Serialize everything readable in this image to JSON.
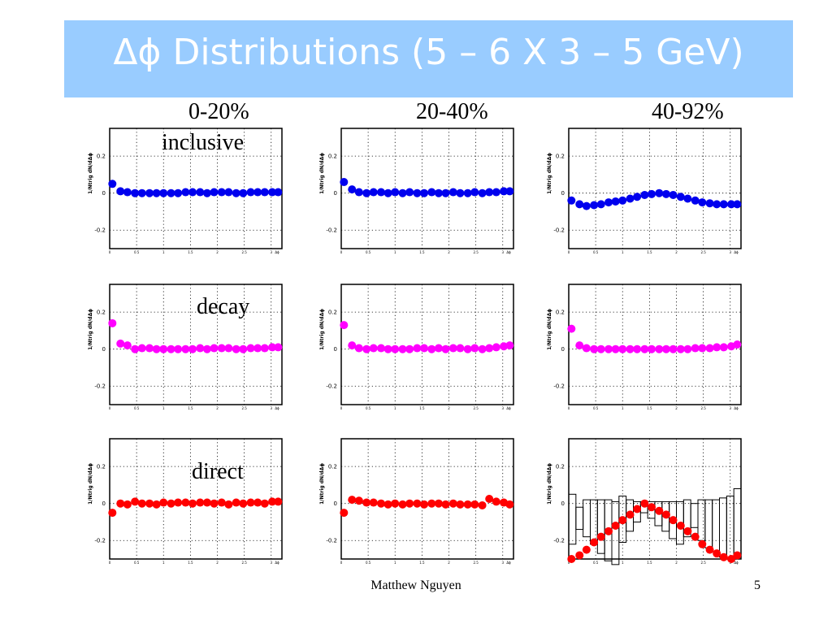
{
  "slide": {
    "title": "Δϕ Distributions (5 – 6 X 3 – 5 GeV)",
    "columns": [
      "0-20%",
      "20-40%",
      "40-92%"
    ],
    "rows": [
      "inclusive",
      "decay",
      "direct"
    ],
    "footer": "Matthew Nguyen",
    "page_number": "5"
  },
  "colors": {
    "title_bar": "#99ccff",
    "title_text": "#ffffff",
    "inclusive": "#0000ee",
    "decay": "#ff00ff",
    "direct": "#ff0000"
  },
  "chart_data": [
    {
      "type": "scatter",
      "row": "inclusive",
      "column": "0-20%",
      "ylabel": "1/Ntrig dN/dΔϕ",
      "xlabel": "Δϕ",
      "xlim": [
        0,
        3.2
      ],
      "ylim": [
        -0.3,
        0.35
      ],
      "yticks": [
        "-0.2",
        "0",
        "0.2"
      ],
      "xticks": [
        "0",
        "0.5",
        "1",
        "1.5",
        "2",
        "2.5",
        "3"
      ],
      "color": "#0000ee",
      "x": [
        0.05,
        0.2,
        0.33,
        0.47,
        0.6,
        0.74,
        0.87,
        1.0,
        1.14,
        1.27,
        1.41,
        1.54,
        1.68,
        1.81,
        1.94,
        2.08,
        2.21,
        2.35,
        2.48,
        2.62,
        2.75,
        2.88,
        3.02,
        3.13
      ],
      "y": [
        0.05,
        0.01,
        0.005,
        0.0,
        0.0,
        0.0,
        0.0,
        0.0,
        0.0,
        0.0,
        0.005,
        0.005,
        0.005,
        0.0,
        0.005,
        0.005,
        0.005,
        0.0,
        0.0,
        0.005,
        0.005,
        0.005,
        0.005,
        0.005
      ]
    },
    {
      "type": "scatter",
      "row": "inclusive",
      "column": "20-40%",
      "ylabel": "1/Ntrig dN/dΔϕ",
      "xlabel": "Δϕ",
      "xlim": [
        0,
        3.2
      ],
      "ylim": [
        -0.3,
        0.35
      ],
      "yticks": [
        "-0.2",
        "0",
        "0.2"
      ],
      "xticks": [
        "0",
        "0.5",
        "1",
        "1.5",
        "2",
        "2.5",
        "3"
      ],
      "color": "#0000ee",
      "x": [
        0.05,
        0.2,
        0.33,
        0.47,
        0.6,
        0.74,
        0.87,
        1.0,
        1.14,
        1.27,
        1.41,
        1.54,
        1.68,
        1.81,
        1.94,
        2.08,
        2.21,
        2.35,
        2.48,
        2.62,
        2.75,
        2.88,
        3.02,
        3.13
      ],
      "y": [
        0.06,
        0.02,
        0.005,
        0.0,
        0.005,
        0.005,
        0.0,
        0.005,
        0.0,
        0.005,
        0.0,
        0.0,
        0.005,
        0.0,
        0.0,
        0.005,
        0.0,
        0.0,
        0.005,
        0.0,
        0.005,
        0.005,
        0.01,
        0.01
      ]
    },
    {
      "type": "scatter",
      "row": "inclusive",
      "column": "40-92%",
      "ylabel": "1/Ntrig dN/dΔϕ",
      "xlabel": "Δϕ",
      "xlim": [
        0,
        3.2
      ],
      "ylim": [
        -0.3,
        0.35
      ],
      "yticks": [
        "-0.2",
        "0",
        "0.2"
      ],
      "xticks": [
        "0",
        "0.5",
        "1",
        "1.5",
        "2",
        "2.5",
        "3"
      ],
      "color": "#0000ee",
      "x": [
        0.05,
        0.2,
        0.33,
        0.47,
        0.6,
        0.74,
        0.87,
        1.0,
        1.14,
        1.27,
        1.41,
        1.54,
        1.68,
        1.81,
        1.94,
        2.08,
        2.21,
        2.35,
        2.48,
        2.62,
        2.75,
        2.88,
        3.02,
        3.13
      ],
      "y": [
        -0.04,
        -0.06,
        -0.07,
        -0.065,
        -0.06,
        -0.05,
        -0.045,
        -0.04,
        -0.03,
        -0.02,
        -0.01,
        -0.005,
        0.0,
        -0.005,
        -0.01,
        -0.02,
        -0.03,
        -0.04,
        -0.05,
        -0.055,
        -0.06,
        -0.06,
        -0.06,
        -0.06
      ]
    },
    {
      "type": "scatter",
      "row": "decay",
      "column": "0-20%",
      "ylabel": "1/Ntrig dN/dΔϕ",
      "xlabel": "Δϕ",
      "xlim": [
        0,
        3.2
      ],
      "ylim": [
        -0.3,
        0.35
      ],
      "yticks": [
        "-0.2",
        "0",
        "0.2"
      ],
      "xticks": [
        "0",
        "0.5",
        "1",
        "1.5",
        "2",
        "2.5",
        "3"
      ],
      "color": "#ff00ff",
      "x": [
        0.05,
        0.2,
        0.33,
        0.47,
        0.6,
        0.74,
        0.87,
        1.0,
        1.14,
        1.27,
        1.41,
        1.54,
        1.68,
        1.81,
        1.94,
        2.08,
        2.21,
        2.35,
        2.48,
        2.62,
        2.75,
        2.88,
        3.02,
        3.13
      ],
      "y": [
        0.14,
        0.03,
        0.02,
        0.0,
        0.005,
        0.005,
        0.0,
        0.0,
        0.0,
        0.0,
        0.0,
        0.0,
        0.005,
        0.0,
        0.005,
        0.005,
        0.005,
        0.0,
        0.0,
        0.005,
        0.005,
        0.005,
        0.01,
        0.01
      ]
    },
    {
      "type": "scatter",
      "row": "decay",
      "column": "20-40%",
      "ylabel": "1/Ntrig dN/dΔϕ",
      "xlabel": "Δϕ",
      "xlim": [
        0,
        3.2
      ],
      "ylim": [
        -0.3,
        0.35
      ],
      "yticks": [
        "-0.2",
        "0",
        "0.2"
      ],
      "xticks": [
        "0",
        "0.5",
        "1",
        "1.5",
        "2",
        "2.5",
        "3"
      ],
      "color": "#ff00ff",
      "x": [
        0.05,
        0.2,
        0.33,
        0.47,
        0.6,
        0.74,
        0.87,
        1.0,
        1.14,
        1.27,
        1.41,
        1.54,
        1.68,
        1.81,
        1.94,
        2.08,
        2.21,
        2.35,
        2.48,
        2.62,
        2.75,
        2.88,
        3.02,
        3.13
      ],
      "y": [
        0.13,
        0.02,
        0.005,
        0.0,
        0.005,
        0.005,
        0.0,
        0.0,
        0.0,
        0.0,
        0.005,
        0.005,
        0.0,
        0.005,
        0.0,
        0.005,
        0.005,
        0.0,
        0.005,
        0.0,
        0.005,
        0.01,
        0.015,
        0.02
      ]
    },
    {
      "type": "scatter",
      "row": "decay",
      "column": "40-92%",
      "ylabel": "1/Ntrig dN/dΔϕ",
      "xlabel": "Δϕ",
      "xlim": [
        0,
        3.2
      ],
      "ylim": [
        -0.3,
        0.35
      ],
      "yticks": [
        "-0.2",
        "0",
        "0.2"
      ],
      "xticks": [
        "0",
        "0.5",
        "1",
        "1.5",
        "2",
        "2.5",
        "3"
      ],
      "color": "#ff00ff",
      "x": [
        0.05,
        0.2,
        0.33,
        0.47,
        0.6,
        0.74,
        0.87,
        1.0,
        1.14,
        1.27,
        1.41,
        1.54,
        1.68,
        1.81,
        1.94,
        2.08,
        2.21,
        2.35,
        2.48,
        2.62,
        2.75,
        2.88,
        3.02,
        3.13
      ],
      "y": [
        0.11,
        0.02,
        0.005,
        0.0,
        0.0,
        0.0,
        0.0,
        0.0,
        0.0,
        0.0,
        0.0,
        0.0,
        0.0,
        0.0,
        0.0,
        0.0,
        0.0,
        0.005,
        0.005,
        0.005,
        0.01,
        0.01,
        0.015,
        0.025
      ]
    },
    {
      "type": "scatter",
      "row": "direct",
      "column": "0-20%",
      "ylabel": "1/Ntrig dN/dΔϕ",
      "xlabel": "Δϕ",
      "xlim": [
        0,
        3.2
      ],
      "ylim": [
        -0.3,
        0.35
      ],
      "yticks": [
        "-0.2",
        "0",
        "0.2"
      ],
      "xticks": [
        "0",
        "0.5",
        "1",
        "1.5",
        "2",
        "2.5",
        "3"
      ],
      "color": "#ff0000",
      "x": [
        0.05,
        0.2,
        0.33,
        0.47,
        0.6,
        0.74,
        0.87,
        1.0,
        1.14,
        1.27,
        1.41,
        1.54,
        1.68,
        1.81,
        1.94,
        2.08,
        2.21,
        2.35,
        2.48,
        2.62,
        2.75,
        2.88,
        3.02,
        3.13
      ],
      "y": [
        -0.05,
        0.0,
        -0.005,
        0.01,
        0.0,
        0.0,
        -0.005,
        0.005,
        0.0,
        0.005,
        0.005,
        0.0,
        0.005,
        0.005,
        0.0,
        0.005,
        -0.005,
        0.005,
        0.0,
        0.005,
        0.005,
        0.0,
        0.01,
        0.01
      ]
    },
    {
      "type": "scatter",
      "row": "direct",
      "column": "20-40%",
      "ylabel": "1/Ntrig dN/dΔϕ",
      "xlabel": "Δϕ",
      "xlim": [
        0,
        3.2
      ],
      "ylim": [
        -0.3,
        0.35
      ],
      "yticks": [
        "-0.2",
        "0",
        "0.2"
      ],
      "xticks": [
        "0",
        "0.5",
        "1",
        "1.5",
        "2",
        "2.5",
        "3"
      ],
      "color": "#ff0000",
      "x": [
        0.05,
        0.2,
        0.33,
        0.47,
        0.6,
        0.74,
        0.87,
        1.0,
        1.14,
        1.27,
        1.41,
        1.54,
        1.68,
        1.81,
        1.94,
        2.08,
        2.21,
        2.35,
        2.48,
        2.62,
        2.75,
        2.88,
        3.02,
        3.13
      ],
      "y": [
        -0.05,
        0.02,
        0.015,
        0.005,
        0.005,
        0.0,
        -0.005,
        0.0,
        -0.005,
        0.0,
        0.0,
        -0.005,
        0.0,
        0.0,
        -0.005,
        0.0,
        -0.005,
        -0.005,
        -0.005,
        -0.01,
        0.025,
        0.01,
        0.005,
        -0.005
      ]
    },
    {
      "type": "scatter",
      "row": "direct",
      "column": "40-92%",
      "ylabel": "1/Ntrig dN/dΔϕ",
      "xlabel": "Δϕ",
      "xlim": [
        0,
        3.2
      ],
      "ylim": [
        -0.3,
        0.35
      ],
      "yticks": [
        "-0.2",
        "0",
        "0.2"
      ],
      "xticks": [
        "0",
        "0.5",
        "1",
        "1.5",
        "2",
        "2.5",
        "3"
      ],
      "color": "#ff0000",
      "x": [
        0.05,
        0.2,
        0.33,
        0.47,
        0.6,
        0.74,
        0.87,
        1.0,
        1.14,
        1.27,
        1.41,
        1.54,
        1.68,
        1.81,
        1.94,
        2.08,
        2.21,
        2.35,
        2.48,
        2.62,
        2.75,
        2.88,
        3.02,
        3.13
      ],
      "y": [
        -0.3,
        -0.28,
        -0.25,
        -0.21,
        -0.18,
        -0.15,
        -0.12,
        -0.09,
        -0.06,
        -0.03,
        0.0,
        -0.02,
        -0.04,
        -0.06,
        -0.09,
        -0.12,
        -0.15,
        -0.18,
        -0.22,
        -0.25,
        -0.27,
        -0.29,
        -0.3,
        -0.28
      ],
      "error_boxes": [
        [
          -0.22,
          0.05
        ],
        [
          -0.14,
          -0.02
        ],
        [
          -0.18,
          0.02
        ],
        [
          -0.22,
          0.02
        ],
        [
          -0.27,
          0.02
        ],
        [
          -0.31,
          0.02
        ],
        [
          -0.33,
          0.01
        ],
        [
          -0.21,
          0.04
        ],
        [
          -0.15,
          0.02
        ],
        [
          -0.1,
          0.01
        ],
        [
          -0.05,
          0.01
        ],
        [
          -0.08,
          0.01
        ],
        [
          -0.12,
          0.01
        ],
        [
          -0.15,
          0.01
        ],
        [
          -0.19,
          0.01
        ],
        [
          -0.22,
          0.01
        ],
        [
          -0.18,
          0.02
        ],
        [
          -0.13,
          0.0
        ],
        [
          -0.2,
          0.02
        ],
        [
          -0.24,
          0.02
        ],
        [
          -0.26,
          0.02
        ],
        [
          -0.29,
          0.03
        ],
        [
          -0.3,
          0.04
        ],
        [
          -0.3,
          0.08
        ]
      ]
    }
  ]
}
